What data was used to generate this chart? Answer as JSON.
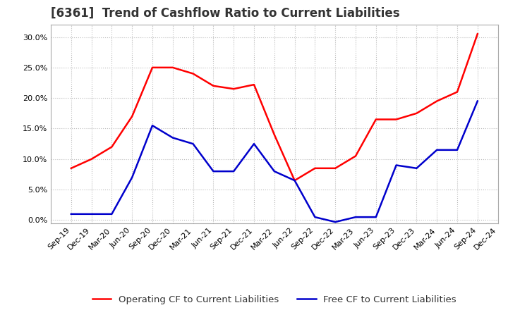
{
  "title": "[6361]  Trend of Cashflow Ratio to Current Liabilities",
  "x_labels": [
    "Sep-19",
    "Dec-19",
    "Mar-20",
    "Jun-20",
    "Sep-20",
    "Dec-20",
    "Mar-21",
    "Jun-21",
    "Sep-21",
    "Dec-21",
    "Mar-22",
    "Jun-22",
    "Sep-22",
    "Dec-22",
    "Mar-23",
    "Jun-23",
    "Sep-23",
    "Dec-23",
    "Mar-24",
    "Jun-24",
    "Sep-24",
    "Dec-24"
  ],
  "operating_cf": [
    0.085,
    0.1,
    0.12,
    0.17,
    0.25,
    0.25,
    0.24,
    0.22,
    0.215,
    0.222,
    0.14,
    0.065,
    0.085,
    0.085,
    0.105,
    0.165,
    0.165,
    0.175,
    0.195,
    0.21,
    0.305,
    null
  ],
  "free_cf": [
    0.01,
    0.01,
    0.01,
    0.07,
    0.155,
    0.135,
    0.125,
    0.08,
    0.08,
    0.125,
    0.08,
    0.065,
    0.005,
    -0.003,
    0.005,
    0.005,
    0.09,
    0.085,
    0.115,
    0.115,
    0.195,
    null
  ],
  "ylim": [
    -0.005,
    0.32
  ],
  "yticks": [
    0.0,
    0.05,
    0.1,
    0.15,
    0.2,
    0.25,
    0.3
  ],
  "operating_color": "#ff0000",
  "free_color": "#0000cc",
  "grid_color": "#bbbbbb",
  "background_color": "#ffffff",
  "title_fontsize": 12,
  "title_color": "#333333",
  "legend_fontsize": 9.5,
  "tick_fontsize": 8,
  "line_width": 1.8
}
